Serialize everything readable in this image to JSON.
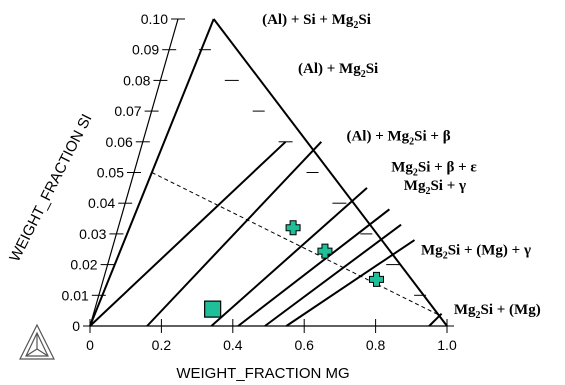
{
  "chart_data": {
    "type": "scatter",
    "subtype": "isothermal-section",
    "xlabel": "WEIGHT_FRACTION MG",
    "ylabel": "WEIGHT_FRACTION SI",
    "x_ticks": [
      "0",
      "0.2",
      "0.4",
      "0.6",
      "0.8",
      "1.0"
    ],
    "y_ticks": [
      "0",
      "0.01",
      "0.02",
      "0.03",
      "0.04",
      "0.05",
      "0.06",
      "0.07",
      "0.08",
      "0.09",
      "0.10"
    ],
    "xlim": [
      0,
      1.0
    ],
    "ylim": [
      0,
      0.1
    ],
    "grid": false,
    "colors": {
      "marker": "#1fbf9a",
      "marker_edge": "#000000",
      "line": "#000000"
    },
    "phase_boundaries": [
      {
        "from": [
          0,
          0
        ],
        "to": [
          0.1,
          0.1
        ]
      },
      {
        "from": [
          0,
          0
        ],
        "to": [
          0.4,
          0.06
        ]
      },
      {
        "from": [
          0.16,
          0
        ],
        "to": [
          0.5,
          0.06
        ]
      },
      {
        "from": [
          0.34,
          0
        ],
        "to": [
          0.665,
          0.045
        ]
      },
      {
        "from": [
          0.415,
          0
        ],
        "to": [
          0.745,
          0.038
        ]
      },
      {
        "from": [
          0.49,
          0
        ],
        "to": [
          0.79,
          0.033
        ]
      },
      {
        "from": [
          0.55,
          0
        ],
        "to": [
          0.84,
          0.028
        ]
      },
      {
        "from": [
          0.95,
          0
        ],
        "to": [
          0.975,
          0.004
        ]
      }
    ],
    "outer_boundary": [
      {
        "from": [
          0.1,
          0.1
        ],
        "to": [
          1.0,
          0
        ]
      }
    ],
    "tie_line": {
      "from": [
        0.05,
        0.05
      ],
      "to": [
        0.97,
        0.0035
      ]
    },
    "points": [
      {
        "x": 0.49,
        "y": 0.032,
        "marker": "cross"
      },
      {
        "x": 0.598,
        "y": 0.0244,
        "marker": "cross"
      },
      {
        "x": 0.765,
        "y": 0.0152,
        "marker": "cross"
      },
      {
        "x": 0.33,
        "y": 0.0055,
        "marker": "square"
      }
    ],
    "region_labels": [
      {
        "text_parts": [
          "(Al) + Si + Mg",
          "2",
          "Si"
        ],
        "anchor": [
          0.23,
          0.1
        ]
      },
      {
        "text_parts": [
          "(Al) + Mg",
          "2",
          "Si"
        ],
        "anchor": [
          0.37,
          0.084
        ]
      },
      {
        "text_parts": [
          "(Al) + Mg",
          "2",
          "Si + β"
        ],
        "anchor": [
          0.56,
          0.062
        ]
      },
      {
        "text_parts": [
          "Mg",
          "2",
          "Si + β + ε"
        ],
        "anchor": [
          0.71,
          0.052
        ]
      },
      {
        "text_parts": [
          "Mg",
          "2",
          "Si + γ"
        ],
        "anchor": [
          0.76,
          0.046
        ]
      },
      {
        "text_parts": [
          "Mg",
          "2",
          "Si + (Mg) + γ"
        ],
        "anchor": [
          0.86,
          0.025
        ]
      },
      {
        "text_parts": [
          "Mg",
          "2",
          "Si + (Mg)"
        ],
        "anchor": [
          1.0,
          0.0055
        ]
      }
    ]
  }
}
